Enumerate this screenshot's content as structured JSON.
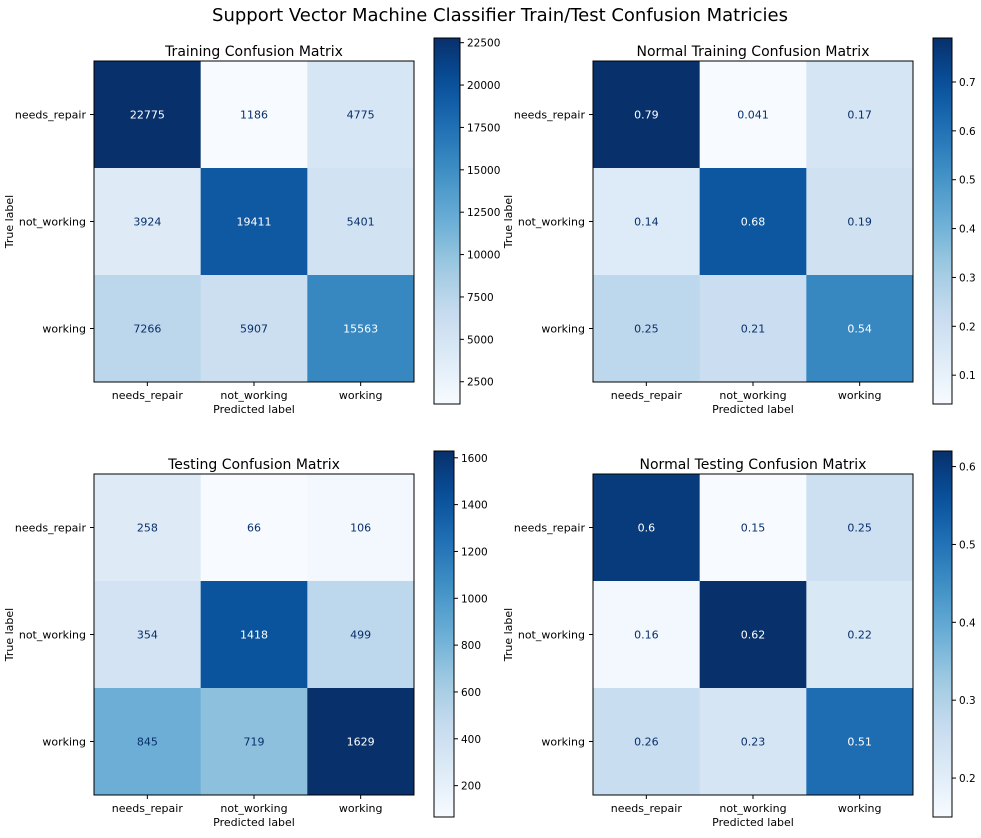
{
  "figure": {
    "suptitle": "Support Vector Machine Classifier Train/Test Confusion Matricies"
  },
  "chart_data": [
    {
      "type": "heatmap",
      "title": "Training Confusion Matrix",
      "xlabel": "Predicted label",
      "ylabel": "True label",
      "x_categories": [
        "needs_repair",
        "not_working",
        "working"
      ],
      "y_categories": [
        "needs_repair",
        "not_working",
        "working"
      ],
      "values": [
        [
          22775,
          1186,
          4775
        ],
        [
          3924,
          19411,
          5401
        ],
        [
          7266,
          5907,
          15563
        ]
      ],
      "value_labels": [
        [
          "22775",
          "1186",
          "4775"
        ],
        [
          "3924",
          "19411",
          "5401"
        ],
        [
          "7266",
          "5907",
          "15563"
        ]
      ],
      "colormap": "Blues",
      "colorbar": {
        "range": [
          1186,
          22775
        ],
        "ticks": [
          2500,
          5000,
          7500,
          10000,
          12500,
          15000,
          17500,
          20000,
          22500
        ],
        "tick_labels": [
          "2500",
          "5000",
          "7500",
          "10000",
          "12500",
          "15000",
          "17500",
          "20000",
          "22500"
        ]
      }
    },
    {
      "type": "heatmap",
      "title": "Normal Training Confusion Matrix",
      "xlabel": "Predicted label",
      "ylabel": "True label",
      "x_categories": [
        "needs_repair",
        "not_working",
        "working"
      ],
      "y_categories": [
        "needs_repair",
        "not_working",
        "working"
      ],
      "values": [
        [
          0.79,
          0.041,
          0.17
        ],
        [
          0.14,
          0.68,
          0.19
        ],
        [
          0.25,
          0.21,
          0.54
        ]
      ],
      "value_labels": [
        [
          "0.79",
          "0.041",
          "0.17"
        ],
        [
          "0.14",
          "0.68",
          "0.19"
        ],
        [
          "0.25",
          "0.21",
          "0.54"
        ]
      ],
      "colormap": "Blues",
      "colorbar": {
        "range": [
          0.041,
          0.79
        ],
        "ticks": [
          0.1,
          0.2,
          0.3,
          0.4,
          0.5,
          0.6,
          0.7
        ],
        "tick_labels": [
          "0.1",
          "0.2",
          "0.3",
          "0.4",
          "0.5",
          "0.6",
          "0.7"
        ]
      }
    },
    {
      "type": "heatmap",
      "title": "Testing Confusion Matrix",
      "xlabel": "Predicted label",
      "ylabel": "True label",
      "x_categories": [
        "needs_repair",
        "not_working",
        "working"
      ],
      "y_categories": [
        "needs_repair",
        "not_working",
        "working"
      ],
      "values": [
        [
          258,
          66,
          106
        ],
        [
          354,
          1418,
          499
        ],
        [
          845,
          719,
          1629
        ]
      ],
      "value_labels": [
        [
          "258",
          "66",
          "106"
        ],
        [
          "354",
          "1418",
          "499"
        ],
        [
          "845",
          "719",
          "1629"
        ]
      ],
      "colormap": "Blues",
      "colorbar": {
        "range": [
          66,
          1629
        ],
        "ticks": [
          200,
          400,
          600,
          800,
          1000,
          1200,
          1400,
          1600
        ],
        "tick_labels": [
          "200",
          "400",
          "600",
          "800",
          "1000",
          "1200",
          "1400",
          "1600"
        ]
      }
    },
    {
      "type": "heatmap",
      "title": "Normal Testing Confusion Matrix",
      "xlabel": "Predicted label",
      "ylabel": "True label",
      "x_categories": [
        "needs_repair",
        "not_working",
        "working"
      ],
      "y_categories": [
        "needs_repair",
        "not_working",
        "working"
      ],
      "values": [
        [
          0.6,
          0.15,
          0.25
        ],
        [
          0.16,
          0.62,
          0.22
        ],
        [
          0.26,
          0.23,
          0.51
        ]
      ],
      "value_labels": [
        [
          "0.6",
          "0.15",
          "0.25"
        ],
        [
          "0.16",
          "0.62",
          "0.22"
        ],
        [
          "0.26",
          "0.23",
          "0.51"
        ]
      ],
      "colormap": "Blues",
      "colorbar": {
        "range": [
          0.15,
          0.62
        ],
        "ticks": [
          0.2,
          0.3,
          0.4,
          0.5,
          0.6
        ],
        "tick_labels": [
          "0.2",
          "0.3",
          "0.4",
          "0.5",
          "0.6"
        ]
      }
    }
  ]
}
